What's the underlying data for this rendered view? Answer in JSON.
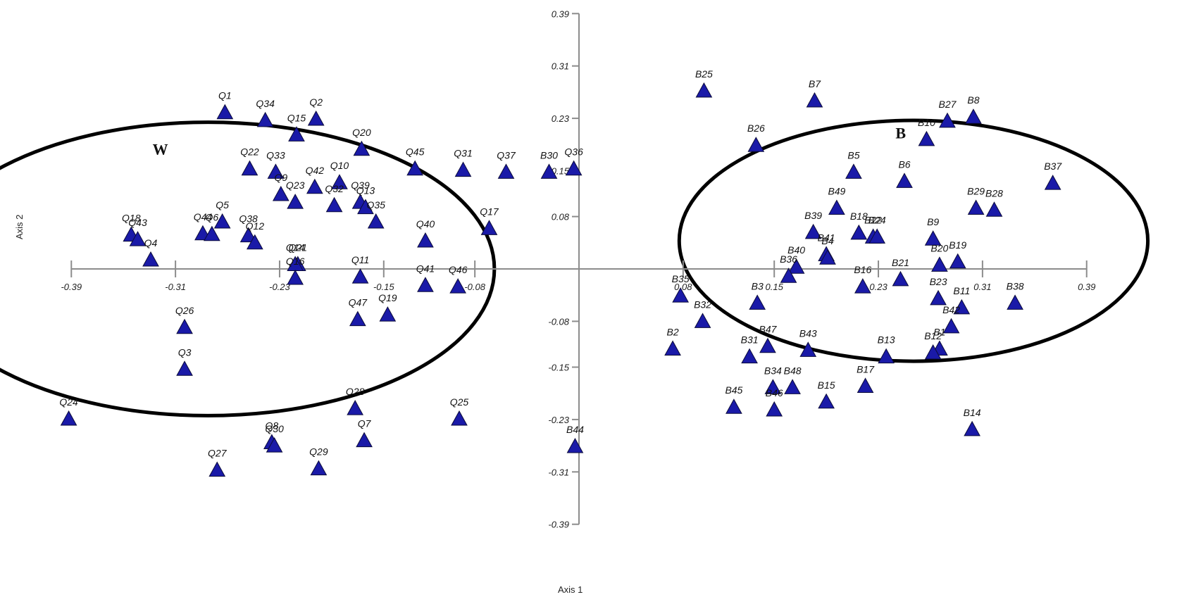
{
  "chart_data": {
    "type": "scatter",
    "title": "",
    "xlabel": "Axis 1",
    "ylabel": "Axis 2",
    "xlim": [
      -0.39,
      0.39
    ],
    "ylim": [
      -0.39,
      0.39
    ],
    "x_ticks": [
      "-0.39",
      "-0.31",
      "-0.23",
      "-0.15",
      "-0.08",
      "0.08",
      "0.15",
      "0.23",
      "0.31",
      "0.39"
    ],
    "y_ticks": [
      "0.39",
      "0.31",
      "0.23",
      "0.15",
      "0.08",
      "-0.08",
      "-0.15",
      "-0.23",
      "-0.31",
      "-0.39"
    ],
    "grid": false,
    "marker_color": "#1a1aa8",
    "groups": [
      {
        "label": "W",
        "circle": {
          "cx": -0.285,
          "cy": 0.0,
          "r": 0.22
        }
      },
      {
        "label": "B",
        "circle": {
          "cx": 0.257,
          "cy": 0.043,
          "r": 0.18
        }
      }
    ],
    "points": [
      {
        "label": "Q1",
        "x": -0.272,
        "y": 0.239
      },
      {
        "label": "Q34",
        "x": -0.241,
        "y": 0.227
      },
      {
        "label": "Q2",
        "x": -0.202,
        "y": 0.229
      },
      {
        "label": "Q15",
        "x": -0.217,
        "y": 0.205
      },
      {
        "label": "Q20",
        "x": -0.167,
        "y": 0.183
      },
      {
        "label": "Q22",
        "x": -0.253,
        "y": 0.153
      },
      {
        "label": "Q33",
        "x": -0.233,
        "y": 0.148
      },
      {
        "label": "Q45",
        "x": -0.126,
        "y": 0.153
      },
      {
        "label": "Q31",
        "x": -0.089,
        "y": 0.151
      },
      {
        "label": "Q37",
        "x": -0.056,
        "y": 0.148
      },
      {
        "label": "B30",
        "x": -0.023,
        "y": 0.148
      },
      {
        "label": "Q36",
        "x": -0.004,
        "y": 0.153
      },
      {
        "label": "Q42",
        "x": -0.203,
        "y": 0.125
      },
      {
        "label": "Q10",
        "x": -0.184,
        "y": 0.132
      },
      {
        "label": "Q9",
        "x": -0.229,
        "y": 0.114
      },
      {
        "label": "Q23",
        "x": -0.218,
        "y": 0.102
      },
      {
        "label": "Q32",
        "x": -0.188,
        "y": 0.097
      },
      {
        "label": "Q39",
        "x": -0.168,
        "y": 0.102
      },
      {
        "label": "Q13",
        "x": -0.164,
        "y": 0.094
      },
      {
        "label": "Q35",
        "x": -0.156,
        "y": 0.072
      },
      {
        "label": "Q18",
        "x": -0.344,
        "y": 0.052
      },
      {
        "label": "Q43",
        "x": -0.339,
        "y": 0.045
      },
      {
        "label": "Q4",
        "x": -0.329,
        "y": 0.014
      },
      {
        "label": "Q44",
        "x": -0.289,
        "y": 0.054
      },
      {
        "label": "Q6",
        "x": -0.282,
        "y": 0.053
      },
      {
        "label": "Q5",
        "x": -0.274,
        "y": 0.072
      },
      {
        "label": "Q38",
        "x": -0.254,
        "y": 0.051
      },
      {
        "label": "Q12",
        "x": -0.249,
        "y": 0.04
      },
      {
        "label": "Q17",
        "x": -0.069,
        "y": 0.062
      },
      {
        "label": "Q40",
        "x": -0.118,
        "y": 0.043
      },
      {
        "label": "Q21",
        "x": -0.216,
        "y": 0.007
      },
      {
        "label": "Q14",
        "x": -0.218,
        "y": 0.007
      },
      {
        "label": "Q16",
        "x": -0.218,
        "y": -0.014
      },
      {
        "label": "Q11",
        "x": -0.168,
        "y": -0.012
      },
      {
        "label": "Q41",
        "x": -0.118,
        "y": -0.025
      },
      {
        "label": "Q46",
        "x": -0.093,
        "y": -0.027
      },
      {
        "label": "Q26",
        "x": -0.303,
        "y": -0.089
      },
      {
        "label": "Q47",
        "x": -0.17,
        "y": -0.077
      },
      {
        "label": "Q19",
        "x": -0.147,
        "y": -0.07
      },
      {
        "label": "Q3",
        "x": -0.303,
        "y": -0.153
      },
      {
        "label": "Q24",
        "x": -0.392,
        "y": -0.229
      },
      {
        "label": "Q28",
        "x": -0.172,
        "y": -0.213
      },
      {
        "label": "Q25",
        "x": -0.092,
        "y": -0.229
      },
      {
        "label": "Q8",
        "x": -0.236,
        "y": -0.265
      },
      {
        "label": "Q30",
        "x": -0.234,
        "y": -0.27
      },
      {
        "label": "Q7",
        "x": -0.165,
        "y": -0.262
      },
      {
        "label": "B44",
        "x": -0.003,
        "y": -0.271
      },
      {
        "label": "Q27",
        "x": -0.278,
        "y": -0.307
      },
      {
        "label": "Q29",
        "x": -0.2,
        "y": -0.305
      },
      {
        "label": "B25",
        "x": 0.096,
        "y": 0.272
      },
      {
        "label": "B7",
        "x": 0.181,
        "y": 0.257
      },
      {
        "label": "B8",
        "x": 0.303,
        "y": 0.232
      },
      {
        "label": "B27",
        "x": 0.283,
        "y": 0.226
      },
      {
        "label": "B10",
        "x": 0.267,
        "y": 0.198
      },
      {
        "label": "B26",
        "x": 0.136,
        "y": 0.189
      },
      {
        "label": "B5",
        "x": 0.211,
        "y": 0.148
      },
      {
        "label": "B6",
        "x": 0.25,
        "y": 0.134
      },
      {
        "label": "B37",
        "x": 0.364,
        "y": 0.131
      },
      {
        "label": "B29",
        "x": 0.305,
        "y": 0.093
      },
      {
        "label": "B28",
        "x": 0.319,
        "y": 0.09
      },
      {
        "label": "B49",
        "x": 0.198,
        "y": 0.093
      },
      {
        "label": "B39",
        "x": 0.18,
        "y": 0.056
      },
      {
        "label": "B18",
        "x": 0.215,
        "y": 0.055
      },
      {
        "label": "B22",
        "x": 0.226,
        "y": 0.049
      },
      {
        "label": "B24",
        "x": 0.229,
        "y": 0.049
      },
      {
        "label": "B9",
        "x": 0.272,
        "y": 0.046
      },
      {
        "label": "B41",
        "x": 0.19,
        "y": 0.022
      },
      {
        "label": "B4",
        "x": 0.191,
        "y": 0.017
      },
      {
        "label": "B40",
        "x": 0.167,
        "y": 0.003
      },
      {
        "label": "B36",
        "x": 0.161,
        "y": -0.011
      },
      {
        "label": "B20",
        "x": 0.277,
        "y": 0.006
      },
      {
        "label": "B19",
        "x": 0.291,
        "y": 0.011
      },
      {
        "label": "B21",
        "x": 0.247,
        "y": -0.016
      },
      {
        "label": "B16",
        "x": 0.218,
        "y": -0.027
      },
      {
        "label": "B35",
        "x": 0.078,
        "y": -0.041
      },
      {
        "label": "B3",
        "x": 0.137,
        "y": -0.052
      },
      {
        "label": "B23",
        "x": 0.276,
        "y": -0.045
      },
      {
        "label": "B11",
        "x": 0.294,
        "y": -0.059
      },
      {
        "label": "B38",
        "x": 0.335,
        "y": -0.052
      },
      {
        "label": "B32",
        "x": 0.095,
        "y": -0.08
      },
      {
        "label": "B42",
        "x": 0.286,
        "y": -0.088
      },
      {
        "label": "B2",
        "x": 0.072,
        "y": -0.122
      },
      {
        "label": "B47",
        "x": 0.145,
        "y": -0.118
      },
      {
        "label": "B43",
        "x": 0.176,
        "y": -0.124
      },
      {
        "label": "B31",
        "x": 0.131,
        "y": -0.134
      },
      {
        "label": "B13",
        "x": 0.236,
        "y": -0.134
      },
      {
        "label": "B1",
        "x": 0.277,
        "y": -0.122
      },
      {
        "label": "B12",
        "x": 0.272,
        "y": -0.128
      },
      {
        "label": "B34",
        "x": 0.149,
        "y": -0.181
      },
      {
        "label": "B48",
        "x": 0.164,
        "y": -0.181
      },
      {
        "label": "B17",
        "x": 0.22,
        "y": -0.179
      },
      {
        "label": "B45",
        "x": 0.119,
        "y": -0.211
      },
      {
        "label": "B46",
        "x": 0.15,
        "y": -0.215
      },
      {
        "label": "B15",
        "x": 0.19,
        "y": -0.203
      },
      {
        "label": "B14",
        "x": 0.302,
        "y": -0.245
      }
    ]
  }
}
